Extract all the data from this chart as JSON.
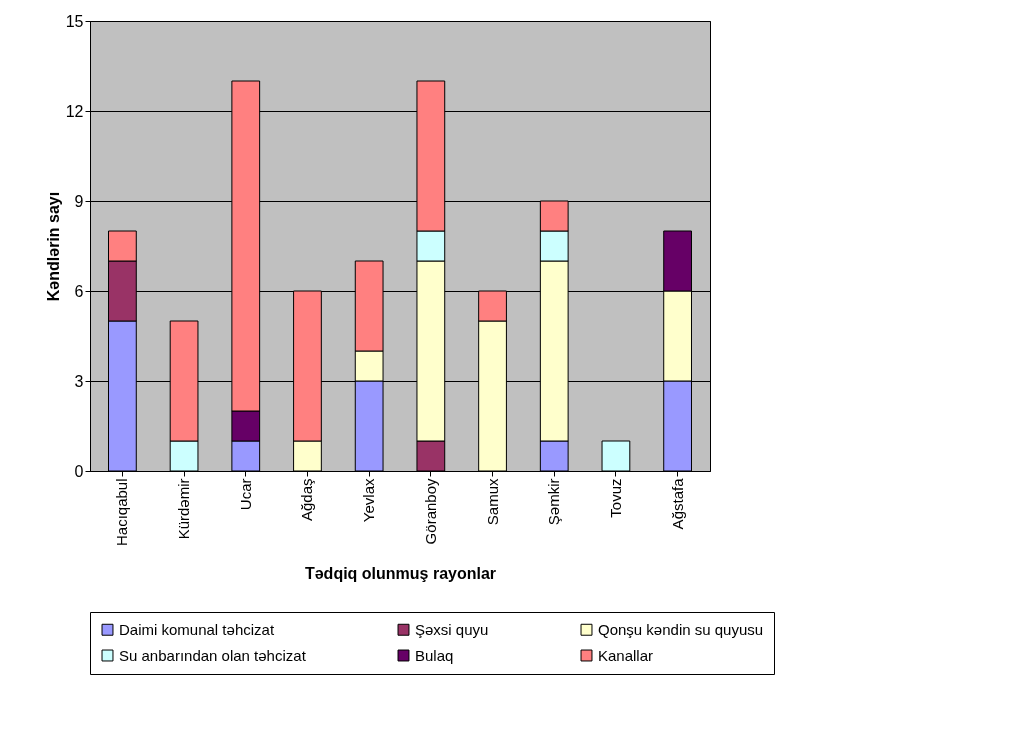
{
  "chart_data": {
    "type": "bar",
    "stacked": true,
    "xlabel": "Tədqiq olunmuş rayonlar",
    "ylabel": "Kəndlərin sayı",
    "categories": [
      "Hacıqabul",
      "Kürdəmir",
      "Ucar",
      "Ağdaş",
      "Yevlax",
      "Göranboy",
      "Samux",
      "Şəmkir",
      "Tovuz",
      "Ağstafa"
    ],
    "series": [
      {
        "name": " Daimi komunal təhcizat",
        "color": "#9999ff",
        "values": [
          5,
          null,
          1,
          null,
          3,
          null,
          null,
          1,
          null,
          3
        ]
      },
      {
        "name": "Şəxsi quyu",
        "color": "#993366",
        "values": [
          2,
          null,
          null,
          null,
          null,
          1,
          null,
          null,
          null,
          null
        ]
      },
      {
        "name": "Qonşu kəndin su quyusu",
        "color": "#ffffcc",
        "values": [
          null,
          null,
          null,
          1,
          1,
          6,
          5,
          6,
          null,
          3
        ]
      },
      {
        "name": "Su anbarından olan təhcizat",
        "color": "#ccffff",
        "values": [
          null,
          1,
          null,
          null,
          null,
          1,
          null,
          1,
          1,
          null
        ]
      },
      {
        "name": "Bulaq",
        "color": "#660066",
        "values": [
          null,
          null,
          1,
          null,
          null,
          null,
          null,
          null,
          null,
          2
        ]
      },
      {
        "name": "Kanallar",
        "color": "#ff8080",
        "values": [
          1,
          4,
          11,
          5,
          3,
          5,
          1,
          1,
          null,
          null
        ]
      }
    ],
    "ylim": [
      0,
      15
    ],
    "yticks": [
      0,
      3,
      6,
      9,
      12,
      15
    ],
    "grid": "y",
    "legend": "bottom"
  }
}
